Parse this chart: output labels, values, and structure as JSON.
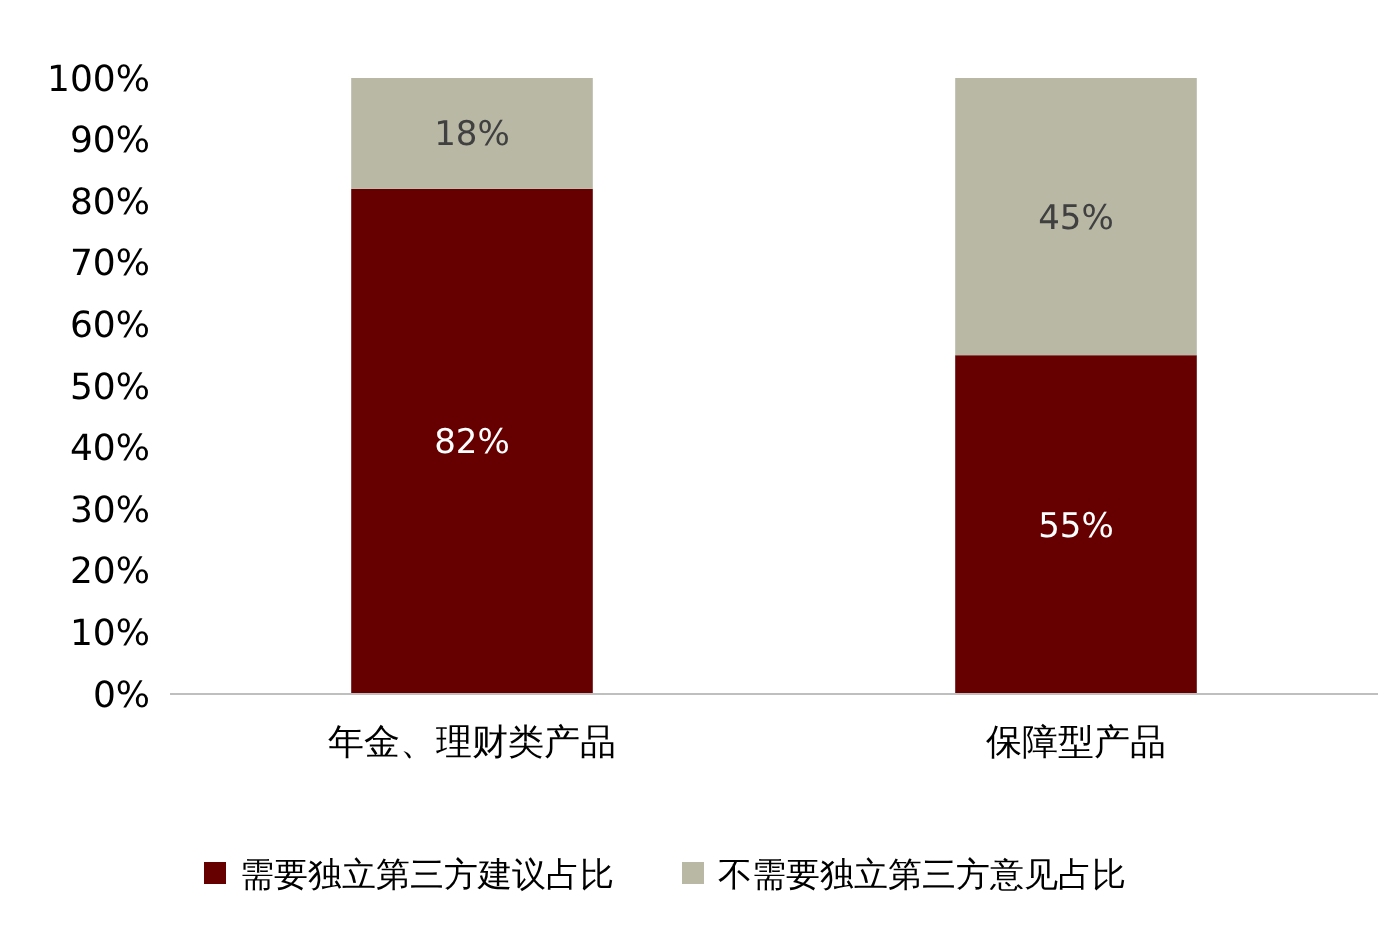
{
  "chart_data": {
    "type": "bar",
    "stacked": true,
    "categories": [
      "年金、理财类产品",
      "保障型产品"
    ],
    "series": [
      {
        "name": "需要独立第三方建议占比",
        "color": "#660000",
        "values": [
          82,
          55
        ],
        "value_labels": [
          "82%",
          "55%"
        ]
      },
      {
        "name": "不需要独立第三方意见占比",
        "color": "#b9b8a5",
        "values": [
          18,
          45
        ],
        "value_labels": [
          "18%",
          "45%"
        ]
      }
    ],
    "ylim": [
      0,
      100
    ],
    "yticks": [
      {
        "value": 0,
        "label": "0%"
      },
      {
        "value": 10,
        "label": "10%"
      },
      {
        "value": 20,
        "label": "20%"
      },
      {
        "value": 30,
        "label": "30%"
      },
      {
        "value": 40,
        "label": "40%"
      },
      {
        "value": 50,
        "label": "50%"
      },
      {
        "value": 60,
        "label": "60%"
      },
      {
        "value": 70,
        "label": "70%"
      },
      {
        "value": 80,
        "label": "80%"
      },
      {
        "value": 90,
        "label": "90%"
      },
      {
        "value": 100,
        "label": "100%"
      }
    ],
    "grid": false,
    "legend": "bottom"
  }
}
